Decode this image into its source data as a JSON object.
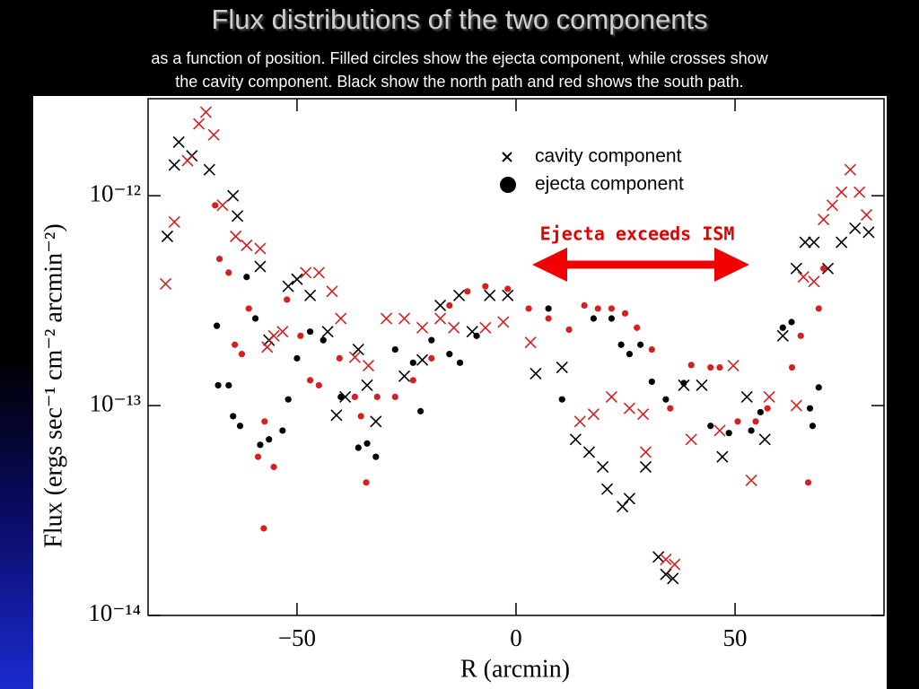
{
  "chart_data": {
    "type": "scatter",
    "title": "Flux distributions of the two components",
    "subtitle": [
      "as a function of position. Filled circles show the ejecta component, while crosses show",
      "the cavity component. Black show the north path and red shows the south path."
    ],
    "xlabel": "R (arcmin)",
    "ylabel": "Flux (ergs sec⁻¹ cm⁻² arcmin⁻²)",
    "annotation": "Ejecta exceeds ISM",
    "ylog": true,
    "xlim": [
      -84,
      84
    ],
    "ylim": [
      1e-14,
      2.9e-12
    ],
    "xticks": [
      {
        "value": -50,
        "label": "−50"
      },
      0,
      50
    ],
    "yticks": [
      {
        "value": 1e-14,
        "label": "10⁻¹⁴"
      },
      {
        "value": 1e-13,
        "label": "10⁻¹³"
      },
      {
        "value": 1e-12,
        "label": "10⁻¹²"
      }
    ],
    "legend": [
      {
        "label": "cavity component",
        "marker": "x"
      },
      {
        "label": "ejecta component",
        "marker": "o"
      }
    ],
    "series": [
      {
        "color": "#000000",
        "marker": "x",
        "x": [
          -79.6,
          -77,
          -78,
          -74,
          -70,
          -64.6,
          -63.6,
          -58.4,
          -56.4,
          -52,
          -50,
          -47,
          -43,
          -41,
          -39,
          -36,
          -34,
          -32,
          -25.5,
          -21.4,
          -17.3,
          -13,
          -10,
          -6,
          -1.9,
          4.5,
          10.5,
          13.6,
          16.7,
          19.8,
          20.8,
          24.3,
          25.9,
          29.6,
          32.5,
          34.2,
          35.8,
          38.3,
          42.4,
          47.1,
          52.7,
          56.8,
          60.9,
          64,
          66,
          68,
          71.2,
          74.3,
          77.4,
          80.5
        ],
        "values": [
          6.4e-13,
          1.8e-12,
          1.4e-12,
          1.55e-12,
          1.33e-12,
          1e-12,
          8e-13,
          4.6e-13,
          2.05e-13,
          3.7e-13,
          4e-13,
          3.35e-13,
          2.25e-13,
          9e-14,
          1.1e-13,
          1.85e-13,
          1.25e-13,
          8.4e-14,
          1.38e-13,
          1.65e-13,
          3e-13,
          3.35e-13,
          2.25e-13,
          3.35e-13,
          3.35e-13,
          1.42e-13,
          1.52e-13,
          6.9e-14,
          6e-14,
          5.1e-14,
          4e-14,
          3.3e-14,
          3.6e-14,
          5.1e-14,
          1.9e-14,
          1.57e-14,
          1.5e-14,
          1.25e-13,
          1.25e-13,
          5.7e-14,
          1.1e-13,
          6.9e-14,
          2.15e-13,
          4.5e-13,
          6e-13,
          6e-13,
          4.5e-13,
          6e-13,
          7e-13,
          6.7e-13
        ]
      },
      {
        "color": "#d42020",
        "marker": "x",
        "x": [
          -80,
          -78,
          -75,
          -72.4,
          -70.8,
          -69,
          -67,
          -64,
          -61.5,
          -58.4,
          -56.8,
          -55.3,
          -53.3,
          -48,
          -45,
          -42,
          -40,
          -36.8,
          -33.7,
          -29.6,
          -25.5,
          -21.4,
          -17.3,
          -14.2,
          -7,
          -2.9,
          3.3,
          14.6,
          17.7,
          21.8,
          25.9,
          29,
          29.6,
          34.2,
          36.2,
          40,
          46.5,
          49.6,
          53.7,
          57.8,
          64,
          65.6,
          68,
          70.2,
          72.2,
          74.3,
          76.3,
          78.4,
          80
        ],
        "values": [
          3.8e-13,
          7.5e-13,
          1.47e-12,
          2.2e-12,
          2.5e-12,
          1.95e-12,
          9e-13,
          6.4e-13,
          5.8e-13,
          5.6e-13,
          1.9e-13,
          2.15e-13,
          2.25e-13,
          4.3e-13,
          4.3e-13,
          3.5e-13,
          2.6e-13,
          1.7e-13,
          1.55e-13,
          2.6e-13,
          2.6e-13,
          2.35e-13,
          2.6e-13,
          2.35e-13,
          2.35e-13,
          2.5e-13,
          2e-13,
          8.4e-14,
          9.1e-14,
          1.1e-13,
          9.7e-14,
          9.1e-14,
          6e-14,
          1.85e-14,
          1.75e-14,
          6.9e-14,
          7.6e-14,
          1.55e-13,
          4.4e-14,
          1.1e-13,
          1e-13,
          4.1e-13,
          3.9e-13,
          7.7e-13,
          9e-13,
          1.04e-12,
          1.33e-12,
          1.04e-12,
          8.1e-13
        ]
      },
      {
        "color": "#000000",
        "marker": "o",
        "x": [
          -68.3,
          -68,
          -65.6,
          -64.6,
          -63,
          -61.5,
          -59.5,
          -58.4,
          -56.4,
          -53.3,
          -52,
          -50,
          -47,
          -44,
          -40,
          -36,
          -34,
          -32,
          -27.6,
          -23.5,
          -21.8,
          -19.3,
          -15.2,
          -12.8,
          -9,
          7.4,
          10.5,
          17.7,
          21.8,
          24,
          25.9,
          28.4,
          31,
          34.2,
          38.3,
          44.4,
          48.6,
          53.7,
          55.8,
          60.9,
          62.9,
          67.1,
          67.7,
          69.1
        ],
        "values": [
          2.4e-13,
          1.25e-13,
          1.25e-13,
          8.9e-14,
          8e-14,
          4.1e-13,
          2.6e-13,
          6.5e-14,
          6.9e-14,
          7.6e-14,
          1.07e-13,
          1.68e-13,
          2.25e-13,
          2.05e-13,
          1.1e-13,
          6.3e-14,
          6.6e-14,
          5.7e-14,
          1.85e-13,
          1.6e-13,
          9.4e-14,
          2.05e-13,
          1.76e-13,
          1.6e-13,
          2.15e-13,
          2.9e-13,
          1.07e-13,
          2.6e-13,
          2.6e-13,
          1.95e-13,
          1.76e-13,
          1.95e-13,
          1.3e-13,
          1.07e-13,
          1.28e-13,
          8e-14,
          7.4e-14,
          7.6e-14,
          9.3e-14,
          2.35e-13,
          2.5e-13,
          9.7e-14,
          8e-14,
          1.22e-13
        ]
      },
      {
        "color": "#d42020",
        "marker": "o",
        "x": [
          -68.7,
          -67.7,
          -65.6,
          -64.2,
          -62.6,
          -61,
          -58.9,
          -57.4,
          -57.6,
          -55.3,
          -52.3,
          -49.2,
          -47,
          -45,
          -40.3,
          -36.8,
          -35.4,
          -34.2,
          -31.7,
          -27.6,
          -23.5,
          -19.3,
          -15.2,
          -11.1,
          -7,
          -1.9,
          2.9,
          7.4,
          12.1,
          15.6,
          18.7,
          21.8,
          24.9,
          27.6,
          31,
          35.2,
          40,
          44.4,
          46.5,
          50.6,
          54.7,
          57.4,
          63,
          65,
          66.7,
          69.1,
          70.2
        ],
        "values": [
          9e-13,
          5e-13,
          4.3e-13,
          1.95e-13,
          1.76e-13,
          2.9e-13,
          5.7e-14,
          8.4e-14,
          2.6e-14,
          5.1e-14,
          3.2e-13,
          2.15e-13,
          1.32e-13,
          1.25e-13,
          1.68e-13,
          1.1e-13,
          8.9e-14,
          4.3e-14,
          1.1e-13,
          1.1e-13,
          1.32e-13,
          1.68e-13,
          3e-13,
          3.5e-13,
          3.7e-13,
          3.6e-13,
          2.9e-13,
          2.6e-13,
          2.3e-13,
          3e-13,
          2.9e-13,
          2.9e-13,
          2.75e-13,
          2.35e-13,
          1.85e-13,
          9.7e-14,
          1.56e-13,
          1.52e-13,
          1.52e-13,
          8.4e-14,
          8.4e-14,
          9.7e-14,
          1.52e-13,
          2.15e-13,
          4.3e-14,
          2.9e-13,
          4.5e-13
        ]
      }
    ]
  }
}
